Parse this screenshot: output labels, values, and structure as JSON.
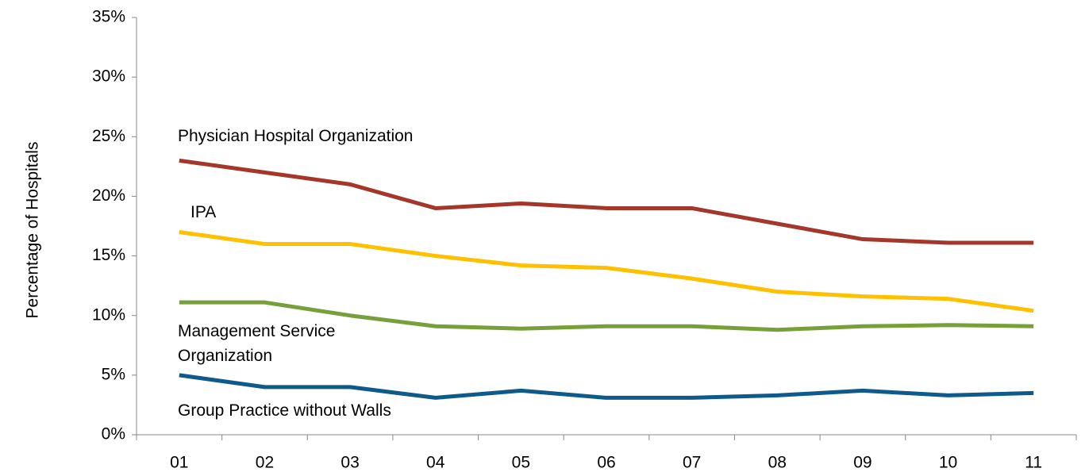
{
  "chart_data": {
    "type": "line",
    "y_axis_label": "Percentage  of Hospitals",
    "categories": [
      "01",
      "02",
      "03",
      "04",
      "05",
      "06",
      "07",
      "08",
      "09",
      "10",
      "11"
    ],
    "ylim": [
      0,
      35
    ],
    "yticks": [
      {
        "value": 0,
        "label": "0%"
      },
      {
        "value": 5,
        "label": "5%"
      },
      {
        "value": 10,
        "label": "10%"
      },
      {
        "value": 15,
        "label": "15%"
      },
      {
        "value": 20,
        "label": "20%"
      },
      {
        "value": 25,
        "label": "25%"
      },
      {
        "value": 30,
        "label": "30%"
      },
      {
        "value": 35,
        "label": "35%"
      }
    ],
    "series": [
      {
        "name": "Physician Hospital Organization",
        "color": "#a5372a",
        "values": [
          23,
          22,
          21,
          19,
          19.4,
          19,
          19,
          17.7,
          16.4,
          16.1,
          16.1
        ]
      },
      {
        "name": "IPA",
        "color": "#ffc000",
        "values": [
          17,
          16,
          16,
          15,
          14.2,
          14,
          13.1,
          12,
          11.6,
          11.4,
          10.4
        ]
      },
      {
        "name": "Management Service Organization",
        "color": "#77a03a",
        "values": [
          11.1,
          11.1,
          10,
          9.1,
          8.9,
          9.1,
          9.1,
          8.8,
          9.1,
          9.2,
          9.1
        ]
      },
      {
        "name": "Group Practice without Walls",
        "color": "#0e5a8a",
        "values": [
          5,
          4,
          4,
          3.1,
          3.7,
          3.1,
          3.1,
          3.3,
          3.7,
          3.3,
          3.5
        ]
      }
    ]
  }
}
